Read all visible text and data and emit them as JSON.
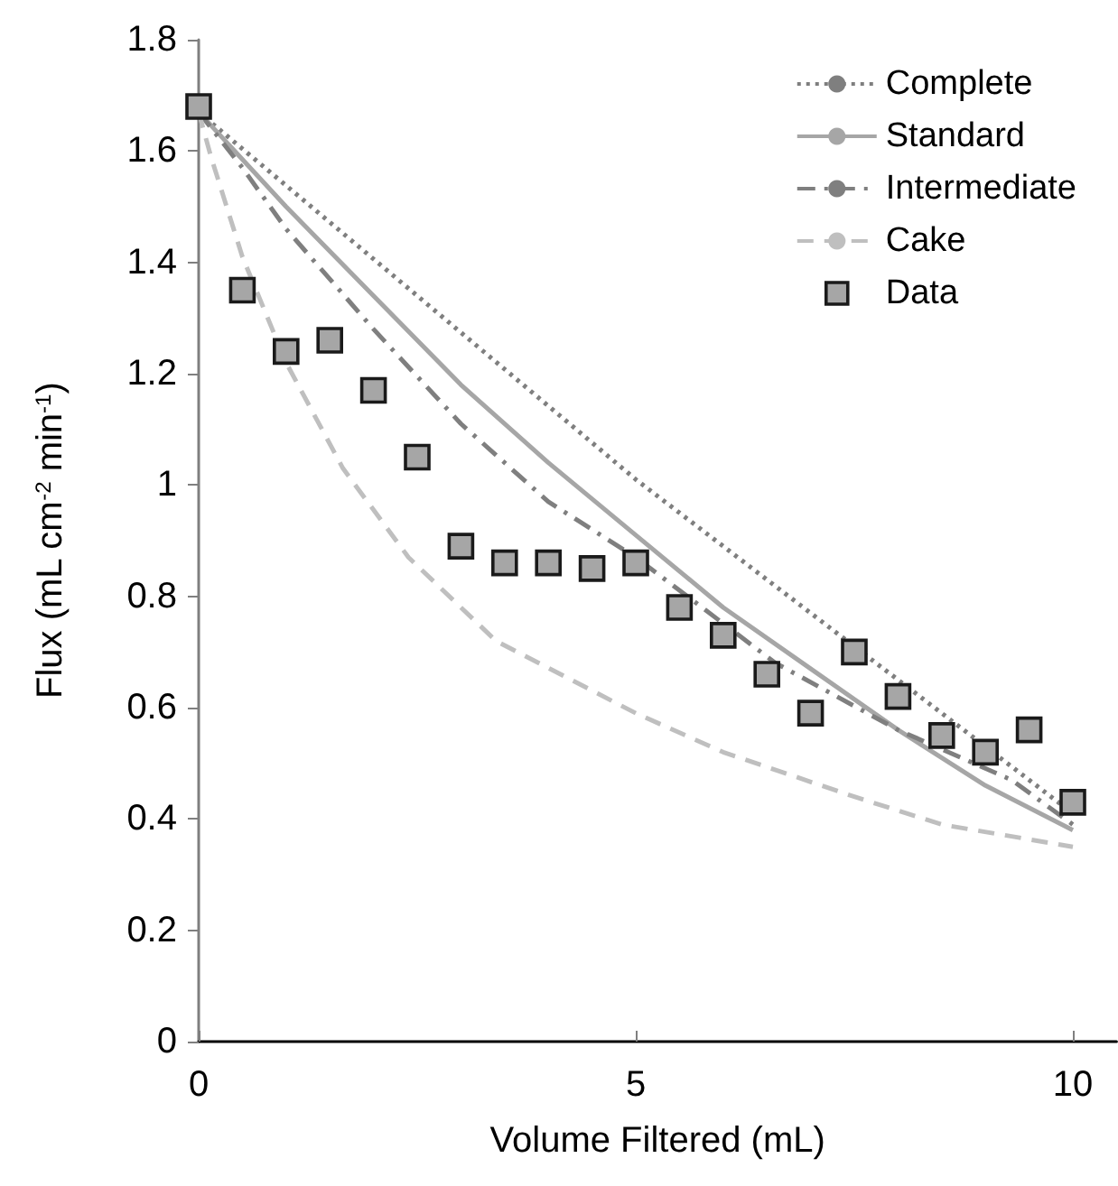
{
  "chart_data": {
    "type": "line",
    "xlabel": "Volume Filtered (mL)",
    "ylabel": "Flux (mL cm$^{-2}$ min$^{-1}$)",
    "xlim": [
      0,
      10.5
    ],
    "xticks": [
      0,
      5,
      10
    ],
    "ylim": [
      0,
      1.8
    ],
    "yticks": [
      0,
      0.2,
      0.4,
      0.6,
      0.8,
      1,
      1.2,
      1.4,
      1.6,
      1.8
    ],
    "grid": false,
    "legend": "top right",
    "marker": "none",
    "series": [
      {
        "name": "Complete",
        "color": "#7f7f7f",
        "line_style": "dotted",
        "x": [
          0,
          2.5,
          5,
          7.5,
          10
        ],
        "values": [
          1.67,
          1.34,
          1.01,
          0.71,
          0.41
        ]
      },
      {
        "name": "Standard",
        "color": "#a6a6a6",
        "line_style": "solid",
        "x": [
          0,
          1,
          2,
          3,
          4,
          5,
          6,
          7,
          8,
          9,
          10
        ],
        "values": [
          1.67,
          1.5,
          1.34,
          1.18,
          1.04,
          0.91,
          0.78,
          0.67,
          0.56,
          0.46,
          0.38
        ]
      },
      {
        "name": "Intermediate",
        "color": "#7f7f7f",
        "line_style": "dashdot",
        "x": [
          0,
          0.5,
          1,
          2,
          3,
          4,
          5,
          6.6,
          8,
          9.3,
          10
        ],
        "values": [
          1.67,
          1.57,
          1.46,
          1.28,
          1.11,
          0.97,
          0.87,
          0.68,
          0.56,
          0.47,
          0.39
        ]
      },
      {
        "name": "Cake",
        "color": "#bfbfbf",
        "line_style": "dashed",
        "x": [
          0,
          0.14,
          0.5,
          1,
          1.65,
          2.4,
          3.4,
          5,
          6,
          7.5,
          8.5,
          10
        ],
        "values": [
          1.67,
          1.59,
          1.41,
          1.22,
          1.03,
          0.87,
          0.72,
          0.59,
          0.52,
          0.44,
          0.39,
          0.35
        ]
      },
      {
        "name": "Data",
        "type": "scatter",
        "marker": "square",
        "color": "#a6a6a6",
        "x": [
          0,
          0.5,
          1,
          1.5,
          2,
          2.5,
          3,
          3.5,
          4,
          4.5,
          5,
          5.5,
          6,
          6.5,
          7,
          7.5,
          8,
          8.5,
          9,
          9.5,
          10
        ],
        "values": [
          1.68,
          1.35,
          1.24,
          1.26,
          1.17,
          1.05,
          0.89,
          0.86,
          0.86,
          0.85,
          0.86,
          0.78,
          0.73,
          0.66,
          0.59,
          0.7,
          0.62,
          0.55,
          0.52,
          0.56,
          0.43
        ]
      }
    ]
  }
}
